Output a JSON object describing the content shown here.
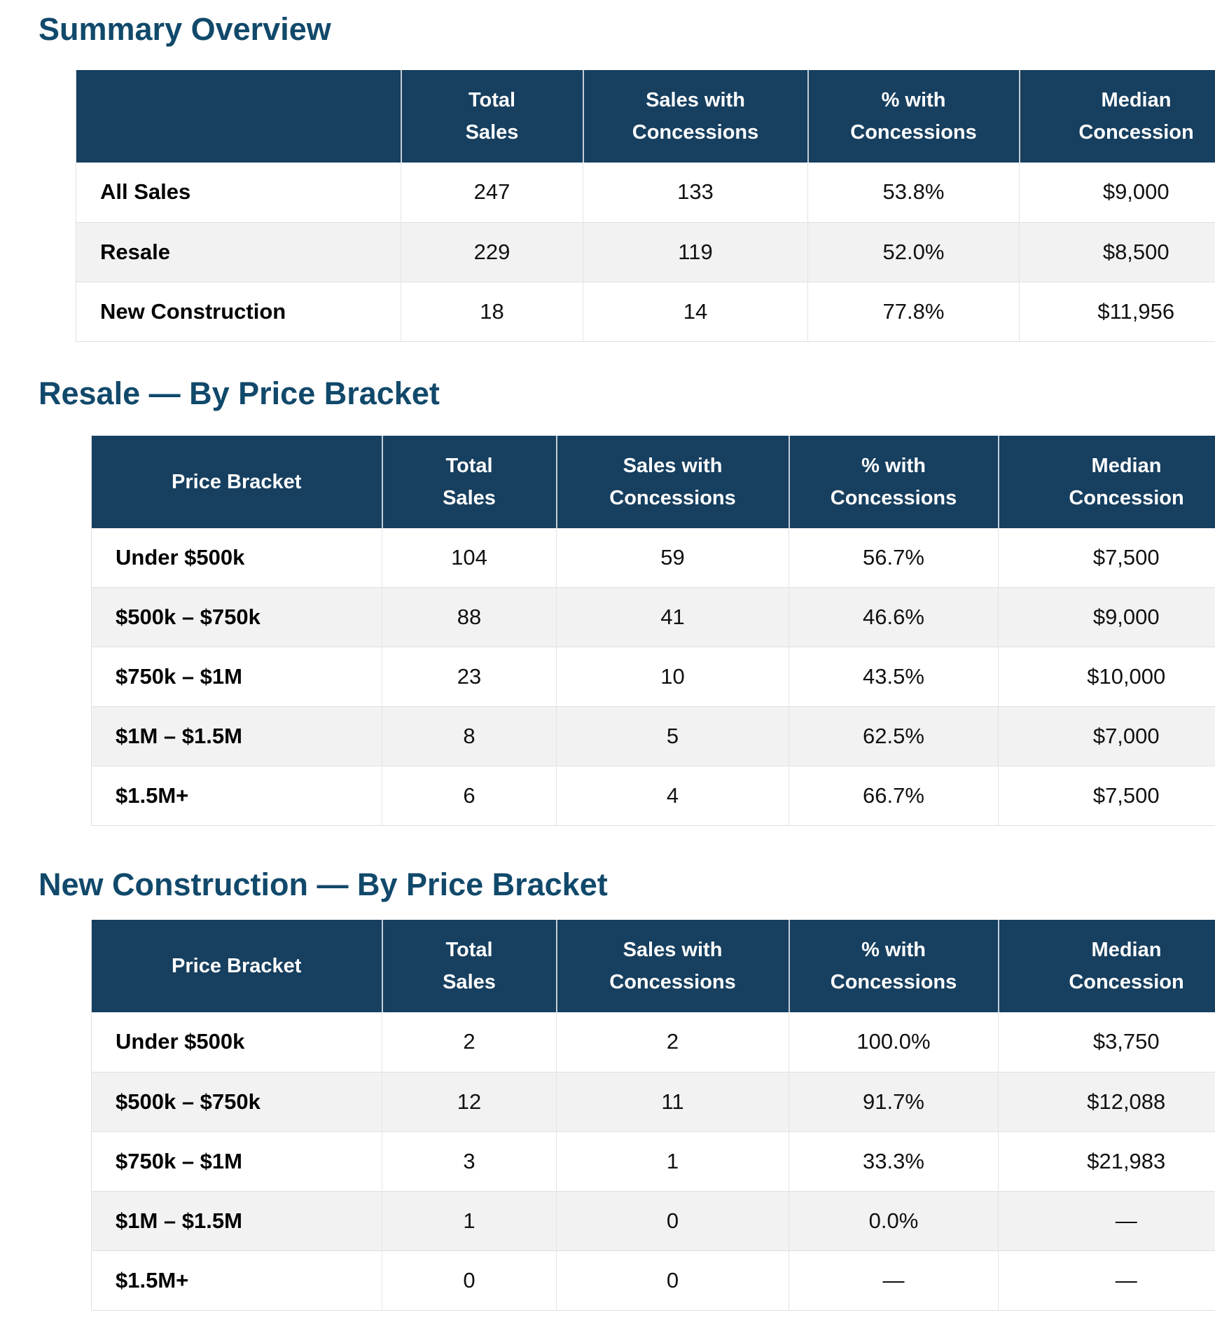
{
  "colors": {
    "header_bg": "#173f5f",
    "title_text": "#11496b",
    "stripe": "#f2f2f2",
    "row_border": "#e0e0e0",
    "cell_text": "#111111"
  },
  "sections": [
    {
      "title": "Summary Overview",
      "columns": [
        {
          "l1": "",
          "l2": ""
        },
        {
          "l1": "Total",
          "l2": "Sales"
        },
        {
          "l1": "Sales with",
          "l2": "Concessions"
        },
        {
          "l1": "% with",
          "l2": "Concessions"
        },
        {
          "l1": "Median",
          "l2": "Concession"
        }
      ],
      "rows": [
        {
          "cells": [
            "All Sales",
            "247",
            "133",
            "53.8%",
            "$9,000"
          ]
        },
        {
          "cells": [
            "Resale",
            "229",
            "119",
            "52.0%",
            "$8,500"
          ]
        },
        {
          "cells": [
            "New Construction",
            "18",
            "14",
            "77.8%",
            "$11,956"
          ]
        }
      ]
    },
    {
      "title": "Resale — By Price Bracket",
      "columns": [
        {
          "l1": "Price Bracket",
          "l2": ""
        },
        {
          "l1": "Total",
          "l2": "Sales"
        },
        {
          "l1": "Sales with",
          "l2": "Concessions"
        },
        {
          "l1": "% with",
          "l2": "Concessions"
        },
        {
          "l1": "Median",
          "l2": "Concession"
        }
      ],
      "rows": [
        {
          "cells": [
            "Under $500k",
            "104",
            "59",
            "56.7%",
            "$7,500"
          ]
        },
        {
          "cells": [
            "$500k – $750k",
            "88",
            "41",
            "46.6%",
            "$9,000"
          ]
        },
        {
          "cells": [
            "$750k – $1M",
            "23",
            "10",
            "43.5%",
            "$10,000"
          ]
        },
        {
          "cells": [
            "$1M – $1.5M",
            "8",
            "5",
            "62.5%",
            "$7,000"
          ]
        },
        {
          "cells": [
            "$1.5M+",
            "6",
            "4",
            "66.7%",
            "$7,500"
          ]
        }
      ]
    },
    {
      "title": "New Construction — By Price Bracket",
      "columns": [
        {
          "l1": "Price Bracket",
          "l2": ""
        },
        {
          "l1": "Total",
          "l2": "Sales"
        },
        {
          "l1": "Sales with",
          "l2": "Concessions"
        },
        {
          "l1": "% with",
          "l2": "Concessions"
        },
        {
          "l1": "Median",
          "l2": "Concession"
        }
      ],
      "rows": [
        {
          "cells": [
            "Under $500k",
            "2",
            "2",
            "100.0%",
            "$3,750"
          ]
        },
        {
          "cells": [
            "$500k – $750k",
            "12",
            "11",
            "91.7%",
            "$12,088"
          ]
        },
        {
          "cells": [
            "$750k – $1M",
            "3",
            "1",
            "33.3%",
            "$21,983"
          ]
        },
        {
          "cells": [
            "$1M – $1.5M",
            "1",
            "0",
            "0.0%",
            "—"
          ]
        },
        {
          "cells": [
            "$1.5M+",
            "0",
            "0",
            "—",
            "—"
          ]
        }
      ]
    }
  ]
}
